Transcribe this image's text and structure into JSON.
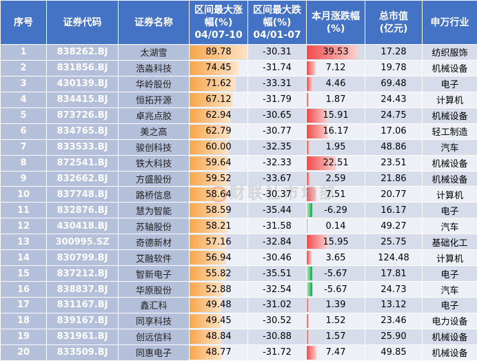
{
  "headers": {
    "idx": "序号",
    "code": "证券代码",
    "name": "证券名称",
    "up_line1": "区间最大涨",
    "up_line2": "幅(%)",
    "up_line3": "04/07-10",
    "down_line1": "区间最大跌",
    "down_line2": "幅(%)",
    "down_line3": "04/01-07",
    "month_line1": "本月涨跌幅",
    "month_line2": "(%)",
    "cap_line1": "总市值",
    "cap_line2": "(亿元)",
    "industry": "申万行业"
  },
  "watermark": "财联社市场部",
  "rows": [
    {
      "idx": "1",
      "code": "838262.BJ",
      "name": "太湖雪",
      "up": "89.78",
      "down": "-30.31",
      "month": "39.53",
      "cap": "17.28",
      "industry": "纺织服饰"
    },
    {
      "idx": "2",
      "code": "831856.BJ",
      "name": "浩淼科技",
      "up": "74.45",
      "down": "-31.74",
      "month": "7.12",
      "cap": "19.78",
      "industry": "机械设备"
    },
    {
      "idx": "3",
      "code": "430139.BJ",
      "name": "华岭股份",
      "up": "71.62",
      "down": "-33.31",
      "month": "4.46",
      "cap": "69.48",
      "industry": "电子"
    },
    {
      "idx": "4",
      "code": "834415.BJ",
      "name": "恒拓开源",
      "up": "67.12",
      "down": "-31.79",
      "month": "1.87",
      "cap": "24.43",
      "industry": "计算机"
    },
    {
      "idx": "5",
      "code": "873726.BJ",
      "name": "卓兆点胶",
      "up": "62.94",
      "down": "-30.65",
      "month": "15.91",
      "cap": "24.75",
      "industry": "机械设备"
    },
    {
      "idx": "6",
      "code": "834765.BJ",
      "name": "美之高",
      "up": "62.79",
      "down": "-30.77",
      "month": "16.17",
      "cap": "17.06",
      "industry": "轻工制造"
    },
    {
      "idx": "7",
      "code": "833533.BJ",
      "name": "骏创科技",
      "up": "60.00",
      "down": "-32.35",
      "month": "1.95",
      "cap": "48.86",
      "industry": "汽车"
    },
    {
      "idx": "8",
      "code": "872541.BJ",
      "name": "铁大科技",
      "up": "59.64",
      "down": "-32.33",
      "month": "22.51",
      "cap": "23.51",
      "industry": "机械设备"
    },
    {
      "idx": "9",
      "code": "832662.BJ",
      "name": "方盛股份",
      "up": "59.52",
      "down": "-33.67",
      "month": "2.59",
      "cap": "21.86",
      "industry": "机械设备"
    },
    {
      "idx": "10",
      "code": "837748.BJ",
      "name": "路桥信息",
      "up": "58.64",
      "down": "-30.37",
      "month": "7.51",
      "cap": "20.77",
      "industry": "计算机"
    },
    {
      "idx": "11",
      "code": "832876.BJ",
      "name": "慧为智能",
      "up": "58.59",
      "down": "-35.44",
      "month": "-6.29",
      "cap": "16.17",
      "industry": "电子"
    },
    {
      "idx": "12",
      "code": "430418.BJ",
      "name": "苏轴股份",
      "up": "58.21",
      "down": "-31.58",
      "month": "0.14",
      "cap": "49.27",
      "industry": "汽车"
    },
    {
      "idx": "13",
      "code": "300995.SZ",
      "name": "奇德新材",
      "up": "57.16",
      "down": "-32.84",
      "month": "15.95",
      "cap": "25.75",
      "industry": "基础化工"
    },
    {
      "idx": "14",
      "code": "830799.BJ",
      "name": "艾融软件",
      "up": "56.94",
      "down": "-30.46",
      "month": "3.65",
      "cap": "124.48",
      "industry": "计算机"
    },
    {
      "idx": "15",
      "code": "837212.BJ",
      "name": "智新电子",
      "up": "55.82",
      "down": "-35.51",
      "month": "-5.67",
      "cap": "17.81",
      "industry": "电子"
    },
    {
      "idx": "16",
      "code": "838837.BJ",
      "name": "华原股份",
      "up": "52.88",
      "down": "-32.54",
      "month": "-5.67",
      "cap": "24.73",
      "industry": "汽车"
    },
    {
      "idx": "17",
      "code": "831167.BJ",
      "name": "鑫汇科",
      "up": "49.48",
      "down": "-31.02",
      "month": "1.39",
      "cap": "13.12",
      "industry": "电子"
    },
    {
      "idx": "18",
      "code": "839167.BJ",
      "name": "同享科技",
      "up": "49.45",
      "down": "-30.52",
      "month": "1.52",
      "cap": "23.46",
      "industry": "电力设备"
    },
    {
      "idx": "19",
      "code": "831961.BJ",
      "name": "创远信科",
      "up": "48.84",
      "down": "-30.88",
      "month": "1.57",
      "cap": "25.90",
      "industry": "机械设备"
    },
    {
      "idx": "20",
      "code": "833509.BJ",
      "name": "同惠电子",
      "up": "48.77",
      "down": "-31.72",
      "month": "7.47",
      "cap": "49.85",
      "industry": "机械设备"
    }
  ]
}
